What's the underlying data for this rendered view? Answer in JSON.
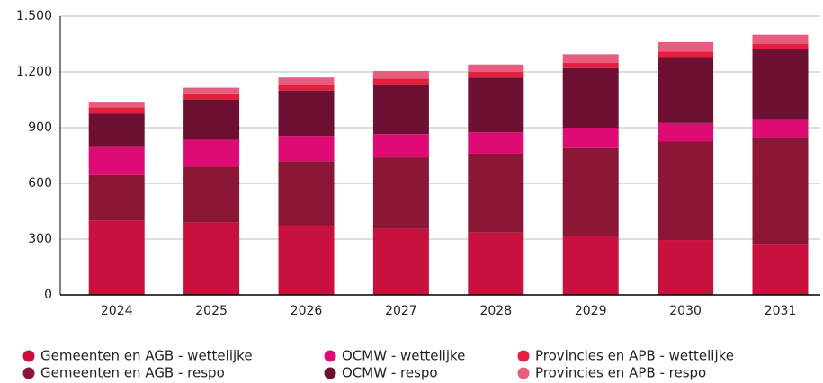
{
  "chart_data": {
    "type": "stacked_bar",
    "categories": [
      "2024",
      "2025",
      "2026",
      "2027",
      "2028",
      "2029",
      "2030",
      "2031"
    ],
    "series": [
      {
        "name": "Gemeenten en AGB - wettelijke",
        "color": "#c8113f",
        "values": [
          400,
          390,
          375,
          355,
          335,
          315,
          295,
          275
        ]
      },
      {
        "name": "Gemeenten en AGB - respo",
        "color": "#8c1636",
        "values": [
          245,
          300,
          345,
          385,
          425,
          475,
          530,
          575
        ]
      },
      {
        "name": "OCMW - wettelijke",
        "color": "#de0b75",
        "values": [
          155,
          145,
          135,
          125,
          115,
          110,
          100,
          95
        ]
      },
      {
        "name": "OCMW - respo",
        "color": "#6e0f34",
        "values": [
          175,
          215,
          245,
          265,
          295,
          320,
          355,
          380
        ]
      },
      {
        "name": "Provincies en APB - wettelijke",
        "color": "#e3203d",
        "values": [
          35,
          35,
          30,
          35,
          30,
          30,
          30,
          25
        ]
      },
      {
        "name": "Provincies en APB - respo",
        "color": "#e85d7f",
        "values": [
          25,
          30,
          40,
          40,
          40,
          45,
          50,
          50
        ]
      }
    ],
    "ylim": [
      0,
      1500
    ],
    "yticks": [
      0,
      300,
      600,
      900,
      {
        "value": 1200,
        "label": "1.200"
      },
      {
        "value": 1500,
        "label": "1.500"
      }
    ],
    "grid": true
  }
}
